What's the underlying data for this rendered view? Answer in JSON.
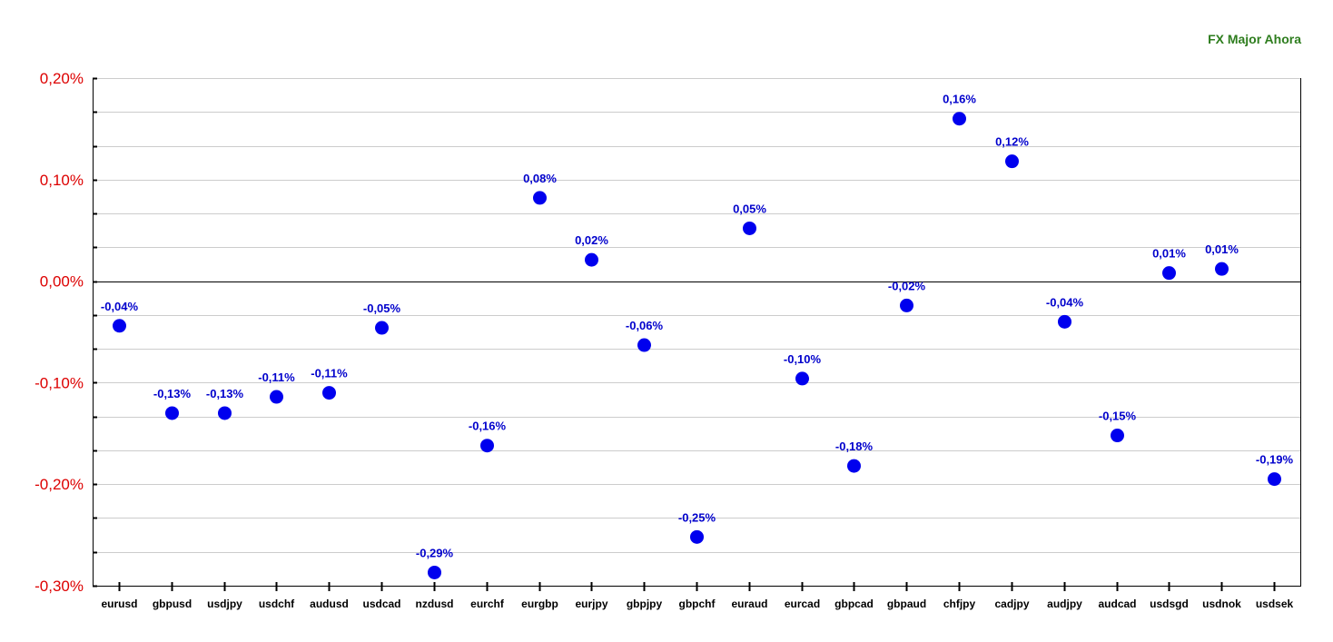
{
  "colors": {
    "title": "#2e7d1e",
    "y_tick_labels": "#dd0000",
    "points": "#0000ee",
    "data_labels": "#0000cc",
    "x_tick_labels": "#000000",
    "grid": "#cccccc",
    "zero_line": "#000000"
  },
  "chart_data": {
    "type": "scatter",
    "title": "FX Major Ahora",
    "xlabel": "",
    "ylabel": "",
    "ylim": [
      -0.3,
      0.2
    ],
    "y_ticks": [
      0.2,
      0.1,
      0.0,
      -0.1,
      -0.2,
      -0.3
    ],
    "y_tick_labels": [
      "0,20%",
      "0,10%",
      "0,00%",
      "-0,10%",
      "-0,20%",
      "-0,30%"
    ],
    "grid": true,
    "legend": "none",
    "categories": [
      "eurusd",
      "gbpusd",
      "usdjpy",
      "usdchf",
      "audusd",
      "usdcad",
      "nzdusd",
      "eurchf",
      "eurgbp",
      "eurjpy",
      "gbpjpy",
      "gbpchf",
      "euraud",
      "eurcad",
      "gbpcad",
      "gbpaud",
      "chfjpy",
      "cadjpy",
      "audjpy",
      "audcad",
      "usdsgd",
      "usdnok",
      "usdsek"
    ],
    "values": [
      -0.044,
      -0.13,
      -0.13,
      -0.114,
      -0.11,
      -0.046,
      -0.287,
      -0.162,
      0.082,
      0.021,
      -0.063,
      -0.252,
      0.052,
      -0.096,
      -0.182,
      -0.024,
      0.16,
      0.118,
      -0.04,
      -0.152,
      0.008,
      0.012,
      -0.195
    ],
    "labels": [
      "-0,04%",
      "-0,13%",
      "-0,13%",
      "-0,11%",
      "-0,11%",
      "-0,05%",
      "-0,29%",
      "-0,16%",
      "0,08%",
      "0,02%",
      "-0,06%",
      "-0,25%",
      "0,05%",
      "-0,10%",
      "-0,18%",
      "-0,02%",
      "0,16%",
      "0,12%",
      "-0,04%",
      "-0,15%",
      "0,01%",
      "0,01%",
      "-0,19%"
    ]
  }
}
